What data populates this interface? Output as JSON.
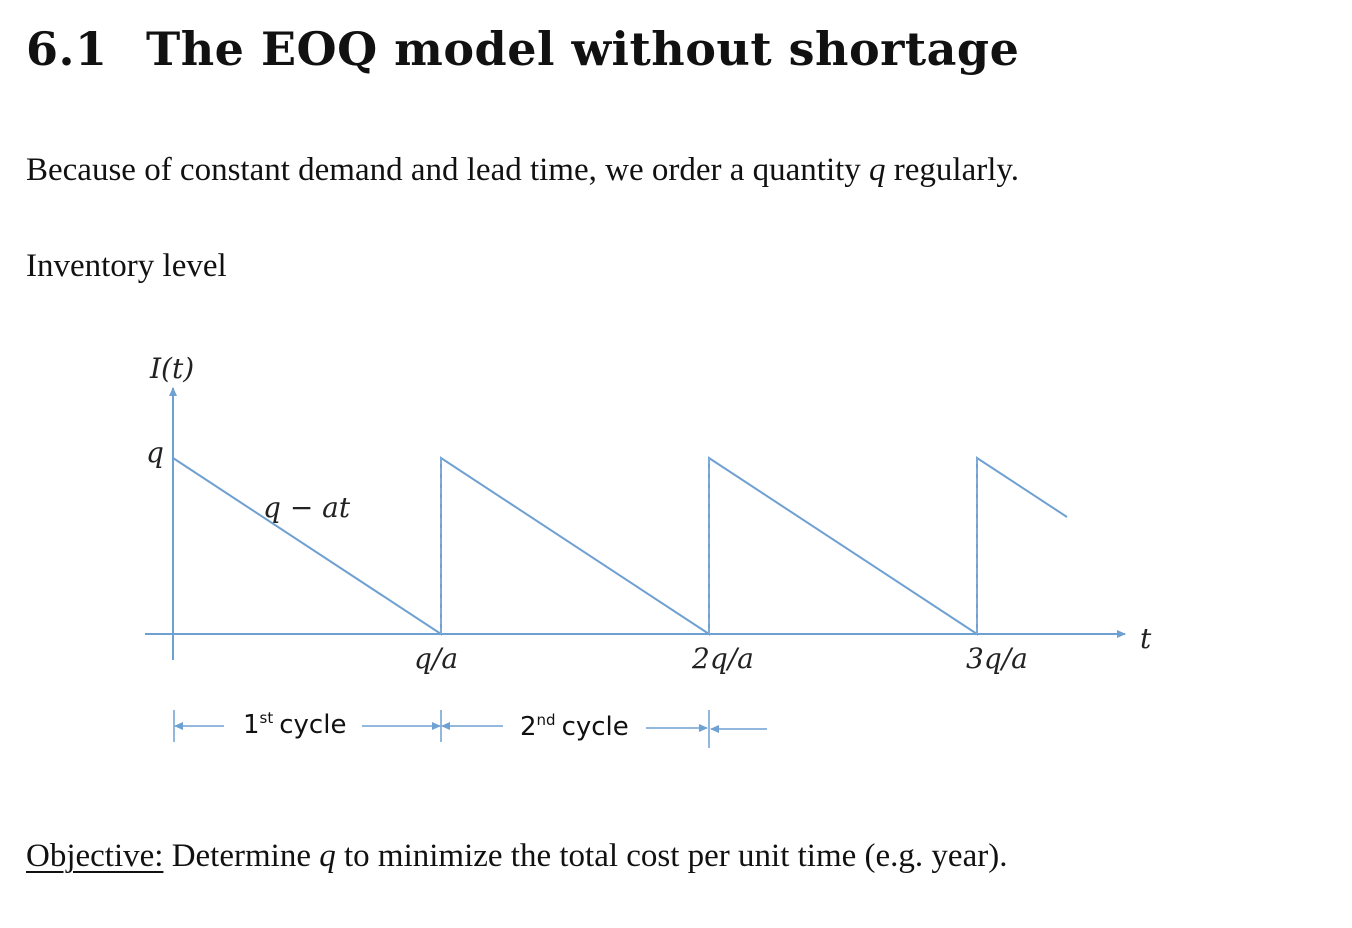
{
  "section": {
    "number": "6.1",
    "title": "The EOQ model without shortage"
  },
  "paragraph1": {
    "before": "Because of constant demand and lead time, we order a quantity ",
    "var": "q",
    "after": " regularly."
  },
  "figure_caption": "Inventory level",
  "figure": {
    "y_axis_label": "I(t)",
    "x_axis_label": "t",
    "y_tick": "q",
    "slope_label": "q − at",
    "x_ticks": [
      "q/a",
      "2q/a",
      "3q/a"
    ],
    "cycles": [
      {
        "ordinal": "1",
        "suffix": "st",
        "word": "cycle"
      },
      {
        "ordinal": "2",
        "suffix": "nd",
        "word": "cycle"
      }
    ],
    "line_color": "#6fa0d2"
  },
  "objective": {
    "label": "Objective:",
    "before": " Determine ",
    "var": "q",
    "after": " to minimize the total cost per unit time (e.g. year)."
  }
}
